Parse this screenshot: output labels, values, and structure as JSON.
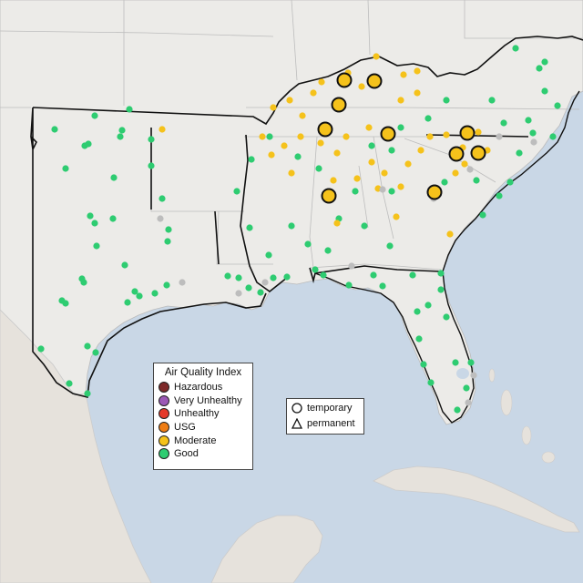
{
  "colors": {
    "hazardous": "#7e2a2a",
    "very_unhealthy": "#9b59b6",
    "unhealthy": "#e53a2b",
    "usg": "#ef7d14",
    "moderate": "#f5c21b",
    "good": "#2ecc71",
    "no_data": "#bdbdbd",
    "water": "#c9d7e6",
    "land": "#ecebe8"
  },
  "legend_aqi": {
    "title": "Air Quality Index",
    "items": [
      {
        "label": "Hazardous",
        "color": "#7e2a2a"
      },
      {
        "label": "Very Unhealthy",
        "color": "#9b59b6"
      },
      {
        "label": "Unhealthy",
        "color": "#e53a2b"
      },
      {
        "label": "USG",
        "color": "#ef7d14"
      },
      {
        "label": "Moderate",
        "color": "#f5c21b"
      },
      {
        "label": "Good",
        "color": "#2ecc71"
      }
    ]
  },
  "legend_type": {
    "temporary": "temporary",
    "permanent": "permanent"
  },
  "monitors": [
    {
      "cat": "good",
      "loc": [
        60,
        142
      ]
    },
    {
      "cat": "good",
      "loc": [
        104,
        127
      ]
    },
    {
      "cat": "good",
      "loc": [
        134,
        143
      ]
    },
    {
      "cat": "good",
      "loc": [
        142,
        120
      ]
    },
    {
      "cat": "good",
      "loc": [
        93,
        160
      ]
    },
    {
      "cat": "good",
      "loc": [
        97,
        158
      ]
    },
    {
      "cat": "good",
      "loc": [
        166,
        153
      ]
    },
    {
      "cat": "good",
      "loc": [
        132,
        150
      ]
    },
    {
      "cat": "good",
      "loc": [
        72,
        185
      ]
    },
    {
      "cat": "good",
      "loc": [
        125,
        195
      ]
    },
    {
      "cat": "good",
      "loc": [
        166,
        182
      ]
    },
    {
      "cat": "good",
      "loc": [
        178,
        218
      ]
    },
    {
      "cat": "good",
      "loc": [
        99,
        237
      ]
    },
    {
      "cat": "good",
      "loc": [
        104,
        245
      ]
    },
    {
      "cat": "good",
      "loc": [
        124,
        240
      ]
    },
    {
      "cat": "good",
      "loc": [
        185,
        252
      ]
    },
    {
      "cat": "good",
      "loc": [
        184,
        265
      ]
    },
    {
      "cat": "good",
      "loc": [
        106,
        270
      ]
    },
    {
      "cat": "good",
      "loc": [
        90,
        306
      ]
    },
    {
      "cat": "good",
      "loc": [
        92,
        310
      ]
    },
    {
      "cat": "good",
      "loc": [
        68,
        330
      ]
    },
    {
      "cat": "good",
      "loc": [
        72,
        333
      ]
    },
    {
      "cat": "good",
      "loc": [
        137,
        291
      ]
    },
    {
      "cat": "good",
      "loc": [
        148,
        320
      ]
    },
    {
      "cat": "good",
      "loc": [
        153,
        325
      ]
    },
    {
      "cat": "good",
      "loc": [
        170,
        322
      ]
    },
    {
      "cat": "good",
      "loc": [
        183,
        313
      ]
    },
    {
      "cat": "good",
      "loc": [
        140,
        332
      ]
    },
    {
      "cat": "good",
      "loc": [
        45,
        383
      ]
    },
    {
      "cat": "good",
      "loc": [
        96,
        380
      ]
    },
    {
      "cat": "good",
      "loc": [
        105,
        387
      ]
    },
    {
      "cat": "good",
      "loc": [
        76,
        421
      ]
    },
    {
      "cat": "good",
      "loc": [
        96,
        432
      ]
    },
    {
      "cat": "good",
      "loc": [
        250,
        303
      ]
    },
    {
      "cat": "good",
      "loc": [
        262,
        305
      ]
    },
    {
      "cat": "good",
      "loc": [
        273,
        316
      ]
    },
    {
      "cat": "good",
      "loc": [
        286,
        321
      ]
    },
    {
      "cat": "good",
      "loc": [
        300,
        305
      ]
    },
    {
      "cat": "good",
      "loc": [
        315,
        304
      ]
    },
    {
      "cat": "good",
      "loc": [
        295,
        280
      ]
    },
    {
      "cat": "good",
      "loc": [
        274,
        250
      ]
    },
    {
      "cat": "good",
      "loc": [
        260,
        210
      ]
    },
    {
      "cat": "good",
      "loc": [
        276,
        175
      ]
    },
    {
      "cat": "good",
      "loc": [
        296,
        150
      ]
    },
    {
      "cat": "good",
      "loc": [
        320,
        248
      ]
    },
    {
      "cat": "good",
      "loc": [
        338,
        268
      ]
    },
    {
      "cat": "good",
      "loc": [
        346,
        296
      ]
    },
    {
      "cat": "good",
      "loc": [
        355,
        302
      ]
    },
    {
      "cat": "good",
      "loc": [
        383,
        313
      ]
    },
    {
      "cat": "good",
      "loc": [
        400,
        248
      ]
    },
    {
      "cat": "good",
      "loc": [
        428,
        270
      ]
    },
    {
      "cat": "good",
      "loc": [
        410,
        302
      ]
    },
    {
      "cat": "good",
      "loc": [
        420,
        314
      ]
    },
    {
      "cat": "good",
      "loc": [
        453,
        302
      ]
    },
    {
      "cat": "good",
      "loc": [
        458,
        342
      ]
    },
    {
      "cat": "good",
      "loc": [
        470,
        335
      ]
    },
    {
      "cat": "good",
      "loc": [
        484,
        300
      ]
    },
    {
      "cat": "good",
      "loc": [
        484,
        318
      ]
    },
    {
      "cat": "good",
      "loc": [
        490,
        348
      ]
    },
    {
      "cat": "good",
      "loc": [
        460,
        372
      ]
    },
    {
      "cat": "good",
      "loc": [
        465,
        400
      ]
    },
    {
      "cat": "good",
      "loc": [
        473,
        420
      ]
    },
    {
      "cat": "good",
      "loc": [
        500,
        398
      ]
    },
    {
      "cat": "good",
      "loc": [
        517,
        398
      ]
    },
    {
      "cat": "good",
      "loc": [
        512,
        426
      ]
    },
    {
      "cat": "good",
      "loc": [
        502,
        450
      ]
    },
    {
      "cat": "good",
      "loc": [
        530,
        236
      ]
    },
    {
      "cat": "good",
      "loc": [
        548,
        215
      ]
    },
    {
      "cat": "good",
      "loc": [
        523,
        198
      ]
    },
    {
      "cat": "good",
      "loc": [
        560,
        200
      ]
    },
    {
      "cat": "good",
      "loc": [
        570,
        168
      ]
    },
    {
      "cat": "good",
      "loc": [
        585,
        146
      ]
    },
    {
      "cat": "good",
      "loc": [
        607,
        150
      ]
    },
    {
      "cat": "good",
      "loc": [
        612,
        116
      ]
    },
    {
      "cat": "good",
      "loc": [
        598,
        100
      ]
    },
    {
      "cat": "good",
      "loc": [
        592,
        75
      ]
    },
    {
      "cat": "good",
      "loc": [
        566,
        53
      ]
    },
    {
      "cat": "good",
      "loc": [
        540,
        110
      ]
    },
    {
      "cat": "good",
      "loc": [
        490,
        110
      ]
    },
    {
      "cat": "good",
      "loc": [
        470,
        130
      ]
    },
    {
      "cat": "good",
      "loc": [
        440,
        140
      ]
    },
    {
      "cat": "good",
      "loc": [
        408,
        160
      ]
    },
    {
      "cat": "good",
      "loc": [
        390,
        210
      ]
    },
    {
      "cat": "good",
      "loc": [
        372,
        240
      ]
    },
    {
      "cat": "good",
      "loc": [
        360,
        275
      ]
    },
    {
      "cat": "good",
      "loc": [
        327,
        172
      ]
    },
    {
      "cat": "good",
      "loc": [
        350,
        185
      ]
    },
    {
      "cat": "good",
      "loc": [
        430,
        165
      ]
    },
    {
      "cat": "good",
      "loc": [
        598,
        68
      ]
    },
    {
      "cat": "good",
      "loc": [
        553,
        135
      ]
    },
    {
      "cat": "good",
      "loc": [
        580,
        132
      ]
    },
    {
      "cat": "moderate",
      "loc": [
        178,
        142
      ]
    },
    {
      "cat": "moderate",
      "loc": [
        300,
        118
      ]
    },
    {
      "cat": "moderate",
      "loc": [
        318,
        110
      ]
    },
    {
      "cat": "moderate",
      "loc": [
        332,
        127
      ]
    },
    {
      "cat": "moderate",
      "loc": [
        344,
        102
      ]
    },
    {
      "cat": "moderate",
      "loc": [
        353,
        90
      ]
    },
    {
      "cat": "moderate",
      "loc": [
        382,
        80
      ]
    },
    {
      "cat": "moderate",
      "loc": [
        397,
        95
      ]
    },
    {
      "cat": "moderate",
      "loc": [
        413,
        62
      ]
    },
    {
      "cat": "moderate",
      "loc": [
        443,
        82
      ]
    },
    {
      "cat": "moderate",
      "loc": [
        458,
        78
      ]
    },
    {
      "cat": "moderate",
      "loc": [
        458,
        102
      ]
    },
    {
      "cat": "moderate",
      "loc": [
        440,
        110
      ]
    },
    {
      "cat": "moderate",
      "loc": [
        405,
        140
      ]
    },
    {
      "cat": "moderate",
      "loc": [
        380,
        150
      ]
    },
    {
      "cat": "moderate",
      "loc": [
        370,
        168
      ]
    },
    {
      "cat": "moderate",
      "loc": [
        352,
        157
      ]
    },
    {
      "cat": "moderate",
      "loc": [
        330,
        150
      ]
    },
    {
      "cat": "moderate",
      "loc": [
        312,
        160
      ]
    },
    {
      "cat": "moderate",
      "loc": [
        298,
        170
      ]
    },
    {
      "cat": "moderate",
      "loc": [
        288,
        150
      ]
    },
    {
      "cat": "moderate",
      "loc": [
        320,
        190
      ]
    },
    {
      "cat": "moderate",
      "loc": [
        366,
        198
      ]
    },
    {
      "cat": "moderate",
      "loc": [
        408,
        178
      ]
    },
    {
      "cat": "moderate",
      "loc": [
        392,
        196
      ]
    },
    {
      "cat": "moderate",
      "loc": [
        415,
        207
      ]
    },
    {
      "cat": "moderate",
      "loc": [
        440,
        205
      ]
    },
    {
      "cat": "moderate",
      "loc": [
        448,
        180
      ]
    },
    {
      "cat": "moderate",
      "loc": [
        462,
        165
      ]
    },
    {
      "cat": "moderate",
      "loc": [
        472,
        150
      ]
    },
    {
      "cat": "moderate",
      "loc": [
        490,
        148
      ]
    },
    {
      "cat": "moderate",
      "loc": [
        508,
        162
      ]
    },
    {
      "cat": "moderate",
      "loc": [
        510,
        180
      ]
    },
    {
      "cat": "moderate",
      "loc": [
        535,
        165
      ]
    },
    {
      "cat": "moderate",
      "loc": [
        525,
        145
      ]
    },
    {
      "cat": "moderate",
      "loc": [
        370,
        245
      ]
    },
    {
      "cat": "moderate",
      "loc": [
        435,
        238
      ]
    },
    {
      "cat": "moderate",
      "loc": [
        494,
        257
      ]
    },
    {
      "cat": "moderate",
      "loc": [
        500,
        190
      ]
    },
    {
      "cat": "moderate",
      "loc": [
        422,
        190
      ]
    },
    {
      "cat": "good",
      "loc": [
        360,
        215
      ]
    },
    {
      "cat": "good",
      "loc": [
        430,
        210
      ]
    },
    {
      "cat": "good",
      "loc": [
        488,
        200
      ]
    },
    {
      "cat": "no_data",
      "loc": [
        176,
        240
      ]
    },
    {
      "cat": "no_data",
      "loc": [
        200,
        310
      ]
    },
    {
      "cat": "no_data",
      "loc": [
        262,
        322
      ]
    },
    {
      "cat": "no_data",
      "loc": [
        291,
        310
      ]
    },
    {
      "cat": "no_data",
      "loc": [
        386,
        292
      ]
    },
    {
      "cat": "no_data",
      "loc": [
        420,
        208
      ]
    },
    {
      "cat": "no_data",
      "loc": [
        516,
        186
      ]
    },
    {
      "cat": "no_data",
      "loc": [
        548,
        150
      ]
    },
    {
      "cat": "no_data",
      "loc": [
        586,
        156
      ]
    },
    {
      "cat": "no_data",
      "loc": [
        514,
        442
      ]
    },
    {
      "cat": "no_data",
      "loc": [
        520,
        412
      ]
    },
    {
      "cat": "no_data",
      "loc": [
        476,
        218
      ]
    }
  ],
  "temporary_monitors": [
    {
      "cat": "moderate",
      "loc": [
        378,
        88
      ]
    },
    {
      "cat": "moderate",
      "loc": [
        411,
        89
      ]
    },
    {
      "cat": "moderate",
      "loc": [
        372,
        115
      ]
    },
    {
      "cat": "moderate",
      "loc": [
        357,
        142
      ]
    },
    {
      "cat": "moderate",
      "loc": [
        426,
        147
      ]
    },
    {
      "cat": "moderate",
      "loc": [
        513,
        146
      ]
    },
    {
      "cat": "moderate",
      "loc": [
        501,
        169
      ]
    },
    {
      "cat": "moderate",
      "loc": [
        525,
        168
      ]
    },
    {
      "cat": "moderate",
      "loc": [
        477,
        211
      ]
    },
    {
      "cat": "moderate",
      "loc": [
        361,
        215
      ]
    }
  ]
}
